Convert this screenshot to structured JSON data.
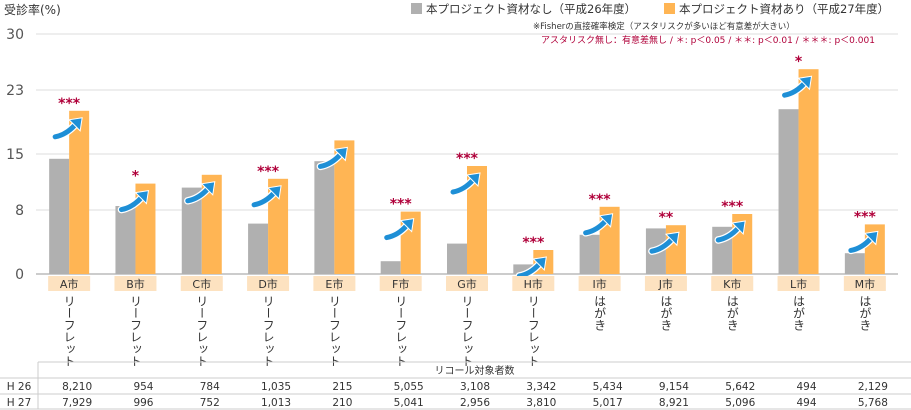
{
  "chart_data": {
    "type": "bar",
    "ylabel": "受診率(%)",
    "ylim": [
      0,
      30
    ],
    "y_ticks": [
      0,
      8,
      15,
      23,
      30
    ],
    "grid": true,
    "legend_position": "top-right",
    "categories": [
      "A市",
      "B市",
      "C市",
      "D市",
      "E市",
      "F市",
      "G市",
      "H市",
      "I市",
      "J市",
      "K市",
      "L市",
      "M市"
    ],
    "material_types": [
      "リーフレット",
      "リーフレット",
      "リーフレット",
      "リーフレット",
      "リーフレット",
      "リーフレット",
      "リーフレット",
      "リーフレット",
      "はがき",
      "はがき",
      "はがき",
      "はがき",
      "はがき"
    ],
    "series": [
      {
        "name": "本プロジェクト資材なし（平成26年度）",
        "color": "#b0b0b0",
        "values": [
          14.4,
          8.5,
          10.8,
          6.3,
          14.1,
          1.6,
          3.8,
          1.2,
          4.9,
          5.7,
          5.9,
          20.6,
          2.6
        ]
      },
      {
        "name": "本プロジェクト資材あり（平成27年度）",
        "color": "#ffb554",
        "values": [
          20.4,
          11.3,
          12.4,
          11.9,
          16.7,
          7.8,
          13.5,
          3.0,
          8.4,
          6.1,
          7.5,
          25.6,
          6.2
        ]
      }
    ],
    "significance": [
      "***",
      "*",
      "",
      "***",
      "",
      "***",
      "***",
      "***",
      "***",
      "**",
      "***",
      "*",
      "***"
    ],
    "note": {
      "line1": "※Fisherの直接確率検定（アスタリスクが多いほど有意差が大きい）",
      "line2": "アスタリスク無し：有意差無し / ＊: p＜0.05 / ＊＊: p＜0.01 / ＊＊＊: p＜0.001"
    },
    "table": {
      "header": "リコール対象者数",
      "rows": [
        {
          "label": "H 26",
          "values": [
            "8,210",
            "954",
            "784",
            "1,035",
            "215",
            "5,055",
            "3,108",
            "3,342",
            "5,434",
            "9,154",
            "5,642",
            "494",
            "2,129"
          ]
        },
        {
          "label": "H 27",
          "values": [
            "7,929",
            "996",
            "752",
            "1,013",
            "210",
            "5,041",
            "2,956",
            "3,810",
            "5,017",
            "8,921",
            "5,096",
            "494",
            "5,768"
          ]
        }
      ]
    },
    "colors": {
      "asterisk": "#b0003a",
      "arrow": "#1e8fd6",
      "label_box": "#fde2c0",
      "grid": "#dddddd"
    }
  }
}
